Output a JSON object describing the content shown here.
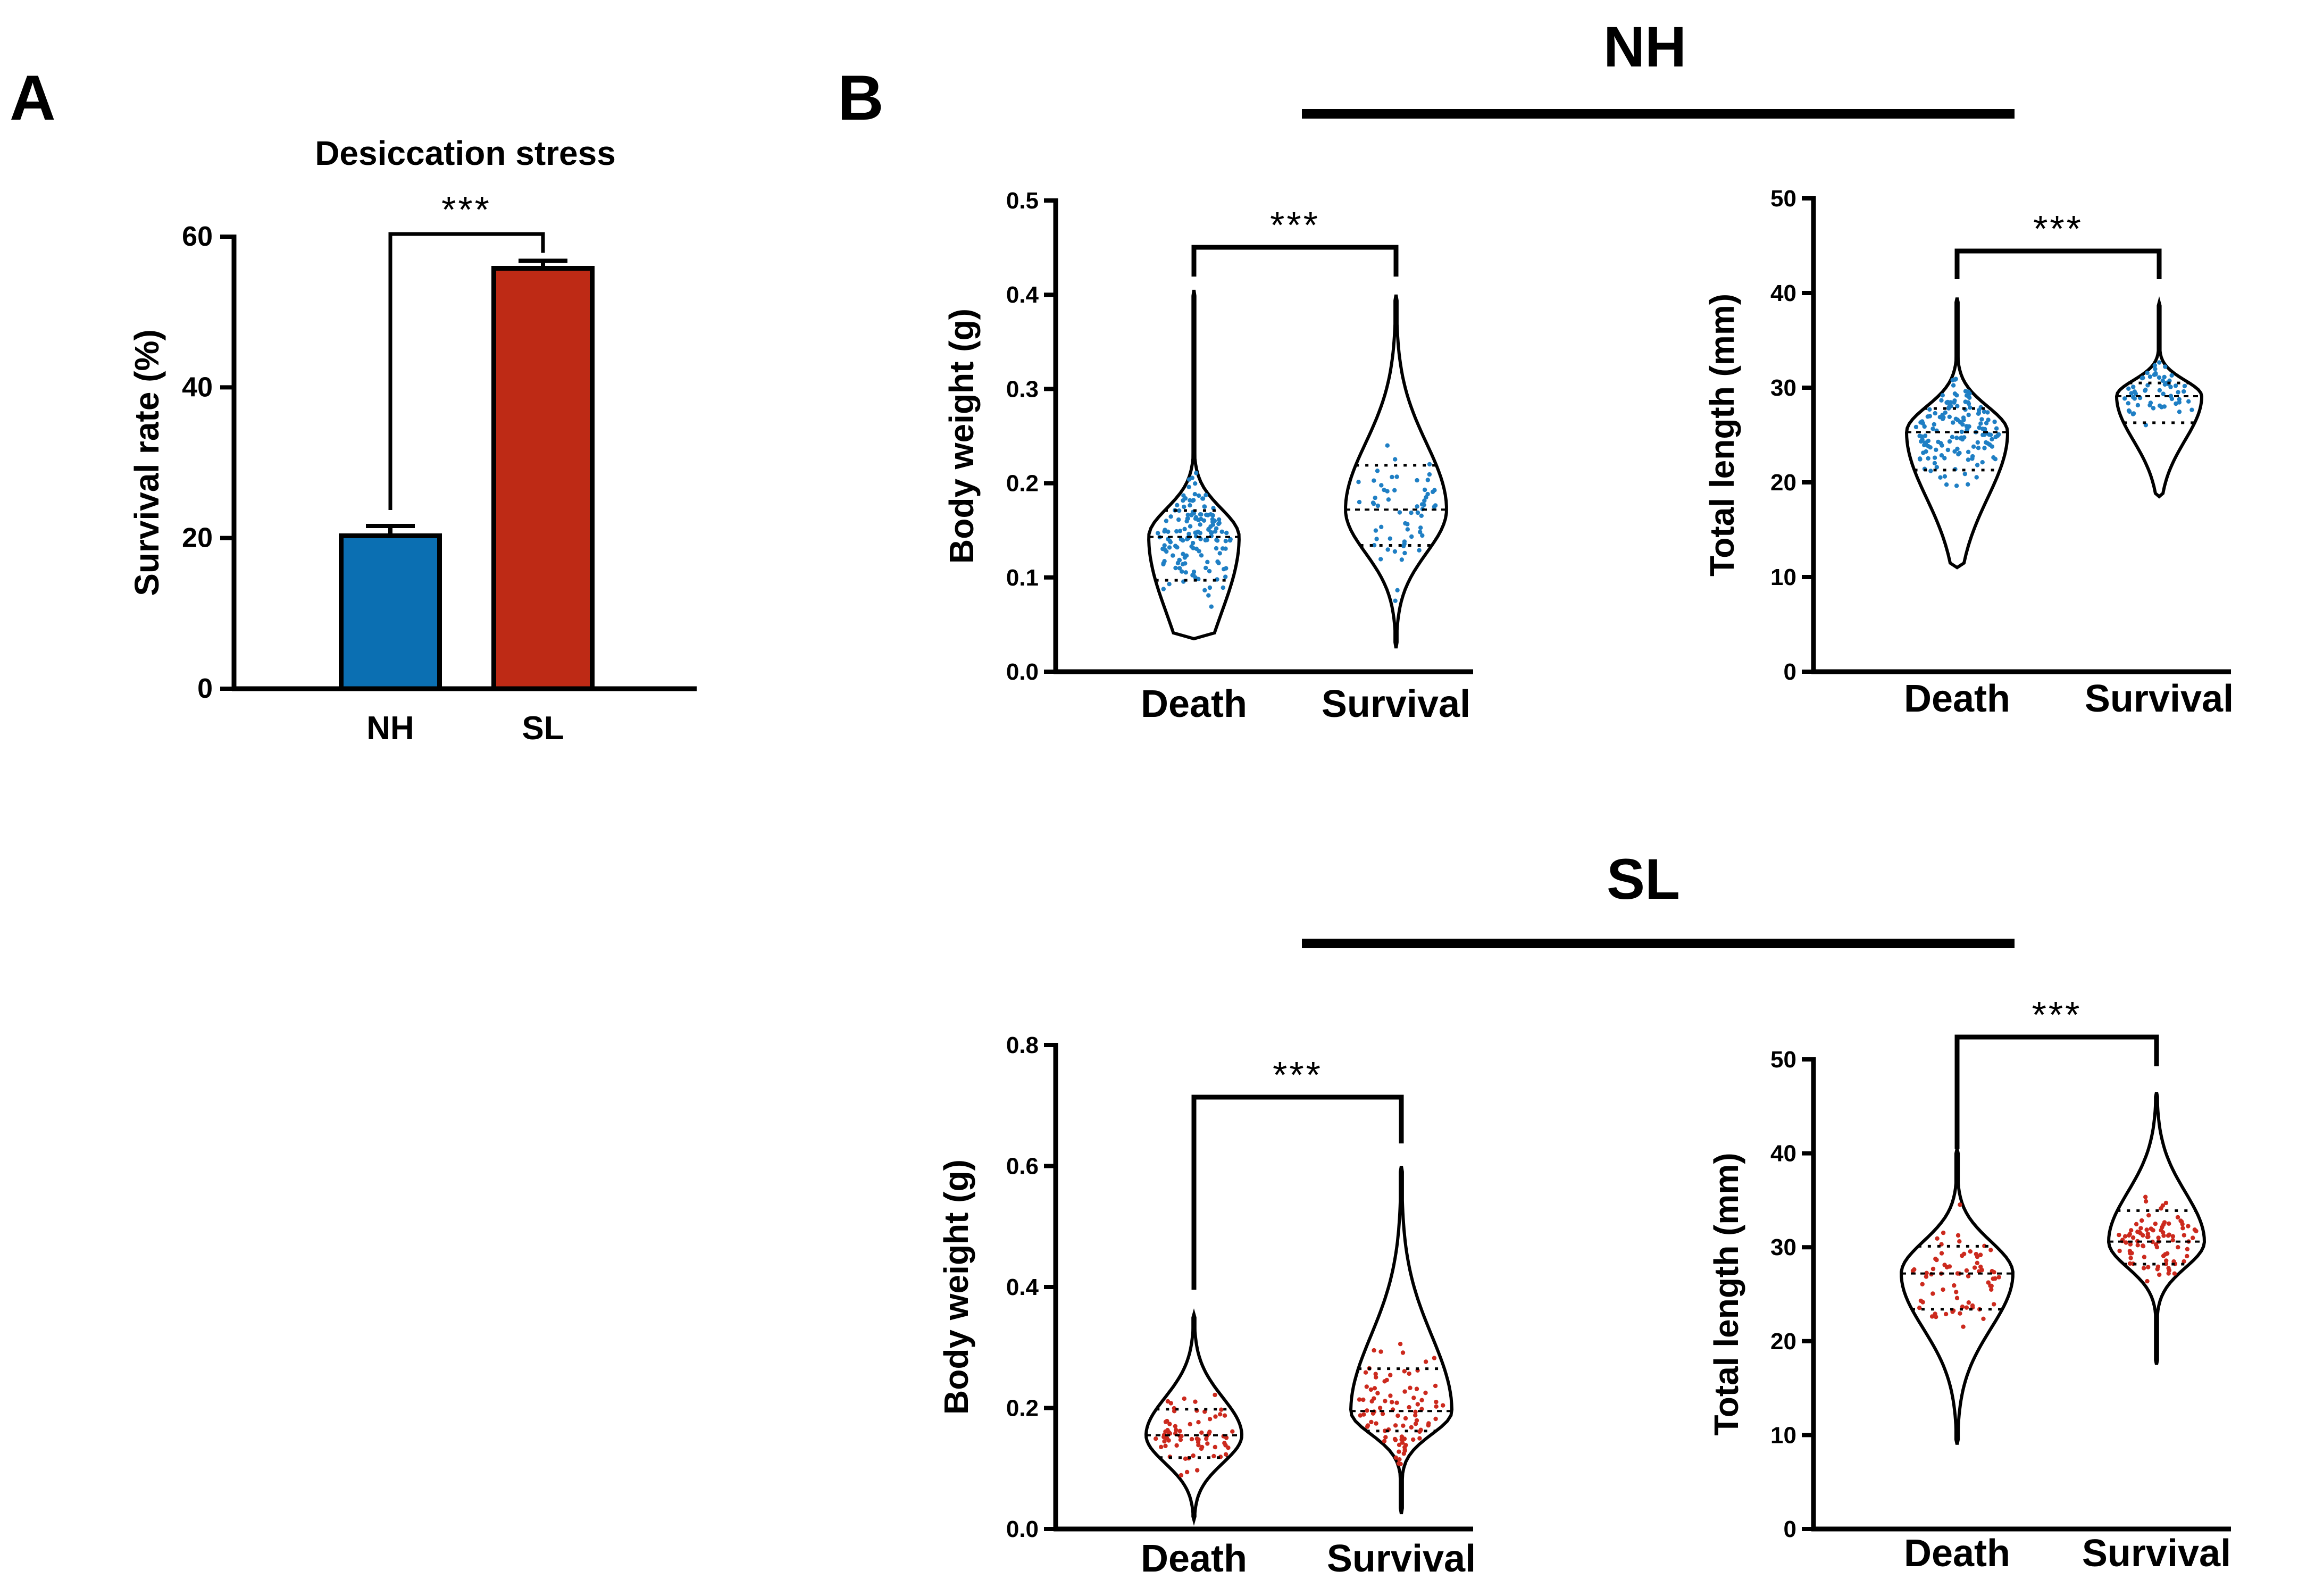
{
  "panels": {
    "a": "A",
    "b": "B"
  },
  "groups": {
    "nh": "NH",
    "sl": "SL"
  },
  "colors": {
    "nh": "#0b6fb2",
    "sl": "#be2a15",
    "nh_points": "#1f7fc4",
    "sl_points": "#cc2a1e"
  },
  "chart_data": [
    {
      "id": "survival",
      "type": "bar",
      "title": "Desiccation stress",
      "ylabel": "Survival rate (%)",
      "xlabel": "",
      "categories": [
        "NH",
        "SL"
      ],
      "values": [
        20.3,
        55.8
      ],
      "errors": [
        1.3,
        1.0
      ],
      "ylim": [
        0,
        60
      ],
      "yticks": [
        "0",
        "20",
        "40",
        "60"
      ],
      "significance": "***"
    },
    {
      "id": "nh_weight",
      "type": "violin",
      "group": "NH",
      "ylabel": "Body weight (g)",
      "categories": [
        "Death",
        "Survival"
      ],
      "ylim": [
        0,
        0.5
      ],
      "yticks": [
        "0.0",
        "0.1",
        "0.2",
        "0.3",
        "0.4",
        "0.5"
      ],
      "significance": "***",
      "series": [
        {
          "name": "Death",
          "median": 0.143,
          "q1": 0.097,
          "q3": 0.171,
          "min": 0.035,
          "max": 0.405,
          "n": 150
        },
        {
          "name": "Survival",
          "median": 0.172,
          "q1": 0.134,
          "q3": 0.219,
          "min": 0.025,
          "max": 0.4,
          "n": 60
        }
      ]
    },
    {
      "id": "nh_length",
      "type": "violin",
      "group": "NH",
      "ylabel": "Total length (mm)",
      "categories": [
        "Death",
        "Survival"
      ],
      "ylim": [
        0,
        50
      ],
      "yticks": [
        "0",
        "10",
        "20",
        "30",
        "40",
        "50"
      ],
      "significance": "***",
      "series": [
        {
          "name": "Death",
          "median": 25.3,
          "q1": 21.3,
          "q3": 27.8,
          "min": 11,
          "max": 39.5,
          "n": 150
        },
        {
          "name": "Survival",
          "median": 29.1,
          "q1": 26.3,
          "q3": 30.5,
          "min": 18.5,
          "max": 39,
          "n": 60
        }
      ]
    },
    {
      "id": "sl_weight",
      "type": "violin",
      "group": "SL",
      "ylabel": "Body weight (g)",
      "categories": [
        "Death",
        "Survival"
      ],
      "ylim": [
        0,
        0.8
      ],
      "yticks": [
        "0.0",
        "0.2",
        "0.4",
        "0.6",
        "0.8"
      ],
      "significance": "***",
      "series": [
        {
          "name": "Death",
          "median": 0.155,
          "q1": 0.118,
          "q3": 0.198,
          "min": 0.015,
          "max": 0.355,
          "n": 70
        },
        {
          "name": "Survival",
          "median": 0.195,
          "q1": 0.162,
          "q3": 0.265,
          "min": 0.025,
          "max": 0.6,
          "n": 90
        }
      ]
    },
    {
      "id": "sl_length",
      "type": "violin",
      "group": "SL",
      "ylabel": "Total length (mm)",
      "categories": [
        "Death",
        "Survival"
      ],
      "ylim": [
        0,
        50
      ],
      "yticks": [
        "0",
        "10",
        "20",
        "30",
        "40",
        "50"
      ],
      "significance": "***",
      "series": [
        {
          "name": "Death",
          "median": 27.2,
          "q1": 23.4,
          "q3": 30.1,
          "min": 9,
          "max": 40.5,
          "n": 70
        },
        {
          "name": "Survival",
          "median": 30.6,
          "q1": 28.2,
          "q3": 33.9,
          "min": 17.5,
          "max": 46.5,
          "n": 90
        }
      ]
    }
  ]
}
